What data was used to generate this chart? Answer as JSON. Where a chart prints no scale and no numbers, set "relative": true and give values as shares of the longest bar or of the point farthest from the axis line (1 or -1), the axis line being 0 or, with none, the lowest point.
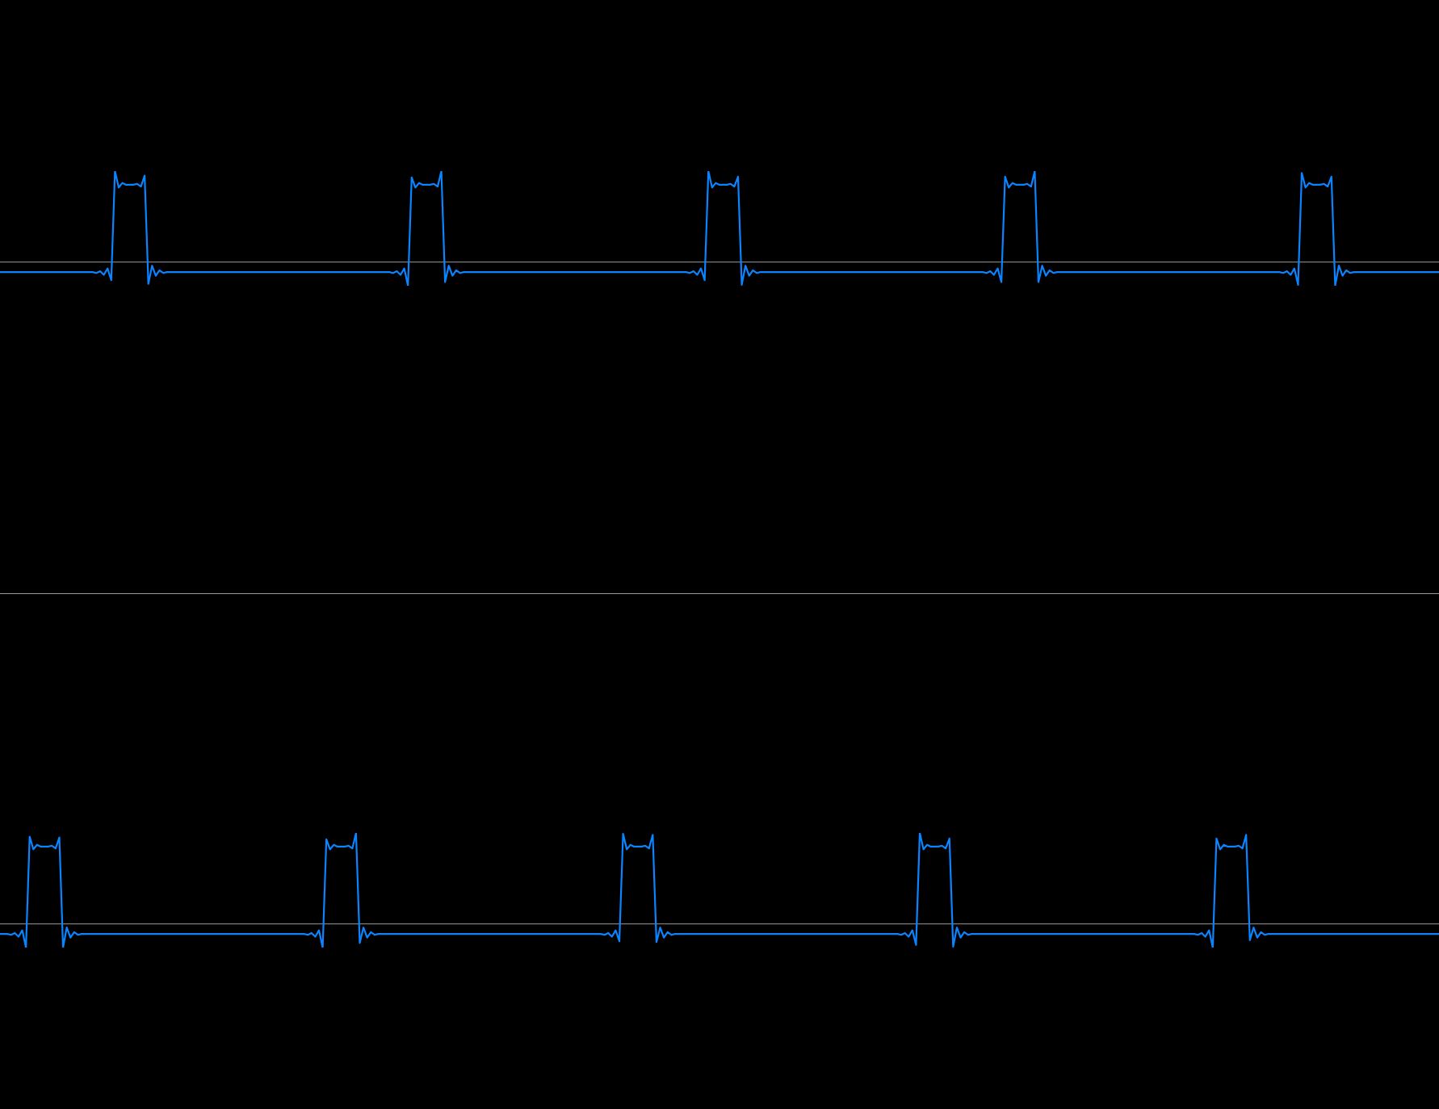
{
  "chart_data": [
    {
      "type": "line",
      "relative": true,
      "tick_labels": false,
      "ref_lines": [
        {
          "axis": "y",
          "value": 0,
          "color": "#9a9a9a"
        }
      ],
      "categories": [
        null,
        null,
        null,
        null,
        null,
        null,
        null,
        null,
        null,
        null,
        null,
        null,
        null,
        null,
        null,
        null,
        null,
        null,
        null,
        null,
        null,
        null,
        null,
        null,
        null,
        null,
        null,
        null,
        null,
        null,
        null,
        null,
        null,
        null,
        null,
        null,
        null,
        null,
        null,
        null,
        null,
        null,
        null,
        null,
        null,
        null,
        null,
        null,
        null,
        null,
        null,
        null,
        null,
        null,
        null,
        null,
        null,
        null,
        null,
        null,
        null,
        null,
        null,
        null,
        null,
        null,
        null,
        null,
        null,
        null,
        null,
        null,
        null,
        null,
        null,
        null,
        null,
        null,
        null,
        null,
        null,
        null,
        null,
        null,
        null,
        null,
        null,
        null,
        null,
        null,
        null,
        null,
        null,
        null,
        null,
        null,
        null,
        null,
        null,
        null,
        null,
        null,
        null,
        null,
        null,
        null,
        null,
        null,
        null,
        null,
        null,
        null,
        null,
        null,
        null,
        null,
        null,
        null,
        null,
        null,
        null,
        null,
        null,
        null,
        null,
        null,
        null,
        null,
        null,
        null,
        null,
        null,
        null,
        null,
        null,
        null,
        null,
        null,
        null,
        null,
        null,
        null,
        null,
        null,
        null,
        null,
        null,
        null,
        null,
        null,
        null,
        null,
        null,
        null,
        null,
        null,
        null,
        null,
        null,
        null,
        null,
        null,
        null,
        null,
        null,
        null,
        null,
        null,
        null,
        null,
        null,
        null,
        null,
        null,
        null,
        null,
        null,
        null,
        null,
        null,
        null,
        null,
        null,
        null,
        null,
        null,
        null,
        null,
        null,
        null,
        null,
        null,
        null,
        null,
        null,
        null,
        null,
        null,
        null,
        null,
        null,
        null,
        null,
        null,
        null,
        null,
        null,
        null,
        null,
        null,
        null,
        null,
        null,
        null,
        null,
        null,
        null,
        null,
        null,
        null,
        null,
        null,
        null,
        null,
        null,
        null,
        null,
        null,
        null,
        null,
        null,
        null,
        null,
        null,
        null,
        null,
        null,
        null,
        null,
        null,
        null,
        null,
        null,
        null,
        null,
        null,
        null,
        null,
        null,
        null,
        null,
        null,
        null,
        null,
        null,
        null,
        null,
        null,
        null,
        null,
        null,
        null,
        null,
        null,
        null,
        null,
        null,
        null,
        null,
        null,
        null,
        null,
        null,
        null,
        null,
        null,
        null,
        null,
        null,
        null,
        null,
        null,
        null,
        null,
        null,
        null,
        null,
        null,
        null,
        null,
        null,
        null,
        null,
        null,
        null,
        null,
        null,
        null,
        null,
        null,
        null,
        null,
        null,
        null,
        null,
        null,
        null,
        null,
        null,
        null,
        null,
        null,
        null,
        null,
        null,
        null,
        null,
        null,
        null,
        null,
        null,
        null,
        null,
        null,
        null,
        null,
        null,
        null,
        null,
        null,
        null,
        null,
        null,
        null,
        null,
        null,
        null,
        null,
        null,
        null,
        null,
        null,
        null,
        null,
        null,
        null,
        null,
        null,
        null,
        null,
        null,
        null,
        null,
        null,
        null,
        null,
        null,
        null,
        null,
        null,
        null,
        null,
        null,
        null,
        null,
        null,
        null,
        null,
        null,
        null,
        null,
        null,
        null,
        null,
        null,
        null,
        null,
        null,
        null,
        null,
        null,
        null,
        null,
        null,
        null,
        null,
        null,
        null,
        null
      ],
      "color": "#0a84ff",
      "values": [
        -0.11,
        -0.11,
        -0.11,
        -0.11,
        -0.11,
        -0.11,
        -0.11,
        -0.11,
        -0.11,
        -0.11,
        -0.11,
        -0.11,
        -0.11,
        -0.11,
        -0.11,
        -0.11,
        -0.11,
        -0.11,
        -0.11,
        -0.11,
        -0.11,
        -0.11,
        -0.11,
        -0.11,
        -0.11,
        -0.11,
        -0.12,
        -0.1,
        -0.14,
        -0.07,
        -0.2,
        1,
        0.82,
        0.87,
        0.85,
        0.85,
        0.85,
        0.86,
        0.83,
        0.95,
        -0.24,
        -0.04,
        -0.15,
        -0.09,
        -0.12,
        -0.11,
        -0.11,
        -0.11,
        -0.11,
        -0.11,
        -0.11,
        -0.11,
        -0.11,
        -0.11,
        -0.11,
        -0.11,
        -0.11,
        -0.11,
        -0.11,
        -0.11,
        -0.11,
        -0.11,
        -0.11,
        -0.11,
        -0.11,
        -0.11,
        -0.11,
        -0.11,
        -0.11,
        -0.11,
        -0.11,
        -0.11,
        -0.11,
        -0.11,
        -0.11,
        -0.11,
        -0.11,
        -0.11,
        -0.11,
        -0.11,
        -0.11,
        -0.11,
        -0.11,
        -0.11,
        -0.11,
        -0.11,
        -0.11,
        -0.11,
        -0.11,
        -0.11,
        -0.11,
        -0.11,
        -0.11,
        -0.11,
        -0.11,
        -0.11,
        -0.11,
        -0.11,
        -0.11,
        -0.11,
        -0.11,
        -0.11,
        -0.11,
        -0.11,
        -0.11,
        -0.11,
        -0.12,
        -0.1,
        -0.14,
        -0.07,
        -0.26,
        0.93,
        0.82,
        0.87,
        0.85,
        0.85,
        0.85,
        0.86,
        0.83,
        1,
        -0.22,
        -0.04,
        -0.15,
        -0.09,
        -0.12,
        -0.11,
        -0.11,
        -0.11,
        -0.11,
        -0.11,
        -0.11,
        -0.11,
        -0.11,
        -0.11,
        -0.11,
        -0.11,
        -0.11,
        -0.11,
        -0.11,
        -0.11,
        -0.11,
        -0.11,
        -0.11,
        -0.11,
        -0.11,
        -0.11,
        -0.11,
        -0.11,
        -0.11,
        -0.11,
        -0.11,
        -0.11,
        -0.11,
        -0.11,
        -0.11,
        -0.11,
        -0.11,
        -0.11,
        -0.11,
        -0.11,
        -0.11,
        -0.11,
        -0.11,
        -0.11,
        -0.11,
        -0.11,
        -0.11,
        -0.11,
        -0.11,
        -0.11,
        -0.11,
        -0.11,
        -0.11,
        -0.11,
        -0.11,
        -0.11,
        -0.11,
        -0.11,
        -0.11,
        -0.11,
        -0.11,
        -0.11,
        -0.11,
        -0.11,
        -0.11,
        -0.11,
        -0.12,
        -0.1,
        -0.14,
        -0.07,
        -0.2,
        1,
        0.82,
        0.87,
        0.85,
        0.85,
        0.85,
        0.86,
        0.83,
        0.94,
        -0.25,
        -0.04,
        -0.15,
        -0.09,
        -0.12,
        -0.11,
        -0.11,
        -0.11,
        -0.11,
        -0.11,
        -0.11,
        -0.11,
        -0.11,
        -0.11,
        -0.11,
        -0.11,
        -0.11,
        -0.11,
        -0.11,
        -0.11,
        -0.11,
        -0.11,
        -0.11,
        -0.11,
        -0.11,
        -0.11,
        -0.11,
        -0.11,
        -0.11,
        -0.11,
        -0.11,
        -0.11,
        -0.11,
        -0.11,
        -0.11,
        -0.11,
        -0.11,
        -0.11,
        -0.11,
        -0.11,
        -0.11,
        -0.11,
        -0.11,
        -0.11,
        -0.11,
        -0.11,
        -0.11,
        -0.11,
        -0.11,
        -0.11,
        -0.11,
        -0.11,
        -0.11,
        -0.11,
        -0.11,
        -0.11,
        -0.11,
        -0.11,
        -0.11,
        -0.11,
        -0.11,
        -0.11,
        -0.11,
        -0.11,
        -0.11,
        -0.11,
        -0.12,
        -0.1,
        -0.14,
        -0.07,
        -0.22,
        0.94,
        0.82,
        0.87,
        0.85,
        0.85,
        0.85,
        0.86,
        0.83,
        1,
        -0.22,
        -0.04,
        -0.15,
        -0.09,
        -0.12,
        -0.11,
        -0.11,
        -0.11,
        -0.11,
        -0.11,
        -0.11,
        -0.11,
        -0.11,
        -0.11,
        -0.11,
        -0.11,
        -0.11,
        -0.11,
        -0.11,
        -0.11,
        -0.11,
        -0.11,
        -0.11,
        -0.11,
        -0.11,
        -0.11,
        -0.11,
        -0.11,
        -0.11,
        -0.11,
        -0.11,
        -0.11,
        -0.11,
        -0.11,
        -0.11,
        -0.11,
        -0.11,
        -0.11,
        -0.11,
        -0.11,
        -0.11,
        -0.11,
        -0.11,
        -0.11,
        -0.11,
        -0.11,
        -0.11,
        -0.11,
        -0.11,
        -0.11,
        -0.11,
        -0.11,
        -0.11,
        -0.11,
        -0.11,
        -0.11,
        -0.11,
        -0.11,
        -0.11,
        -0.11,
        -0.11,
        -0.11,
        -0.11,
        -0.11,
        -0.11,
        -0.11,
        -0.12,
        -0.1,
        -0.14,
        -0.07,
        -0.25,
        0.98,
        0.82,
        0.87,
        0.85,
        0.85,
        0.85,
        0.86,
        0.83,
        0.94,
        -0.26,
        -0.04,
        -0.15,
        -0.09,
        -0.12,
        -0.11,
        -0.11,
        -0.11,
        -0.11,
        -0.11,
        -0.11,
        -0.11,
        -0.11,
        -0.11,
        -0.11,
        -0.11,
        -0.11,
        -0.11,
        -0.11,
        -0.11,
        -0.11,
        -0.11,
        -0.11,
        -0.11,
        -0.11,
        -0.11,
        -0.11,
        -0.11,
        -0.11
      ]
    },
    {
      "type": "line",
      "relative": true,
      "tick_labels": false,
      "ref_lines": [
        {
          "axis": "y",
          "value": 0,
          "color": "#9a9a9a"
        }
      ],
      "categories": [
        null,
        null,
        null,
        null,
        null,
        null,
        null,
        null,
        null,
        null,
        null,
        null,
        null,
        null,
        null,
        null,
        null,
        null,
        null,
        null,
        null,
        null,
        null,
        null,
        null,
        null,
        null,
        null,
        null,
        null,
        null,
        null,
        null,
        null,
        null,
        null,
        null,
        null,
        null,
        null,
        null,
        null,
        null,
        null,
        null,
        null,
        null,
        null,
        null,
        null,
        null,
        null,
        null,
        null,
        null,
        null,
        null,
        null,
        null,
        null,
        null,
        null,
        null,
        null,
        null,
        null,
        null,
        null,
        null,
        null,
        null,
        null,
        null,
        null,
        null,
        null,
        null,
        null,
        null,
        null,
        null,
        null,
        null,
        null,
        null,
        null,
        null,
        null,
        null,
        null,
        null,
        null,
        null,
        null,
        null,
        null,
        null,
        null,
        null,
        null,
        null,
        null,
        null,
        null,
        null,
        null,
        null,
        null,
        null,
        null,
        null,
        null,
        null,
        null,
        null,
        null,
        null,
        null,
        null,
        null,
        null,
        null,
        null,
        null,
        null,
        null,
        null,
        null,
        null,
        null,
        null,
        null,
        null,
        null,
        null,
        null,
        null,
        null,
        null,
        null,
        null,
        null,
        null,
        null,
        null,
        null,
        null,
        null,
        null,
        null,
        null,
        null,
        null,
        null,
        null,
        null,
        null,
        null,
        null,
        null,
        null,
        null,
        null,
        null,
        null,
        null,
        null,
        null,
        null,
        null,
        null,
        null,
        null,
        null,
        null,
        null,
        null,
        null,
        null,
        null,
        null,
        null,
        null,
        null,
        null,
        null,
        null,
        null,
        null,
        null,
        null,
        null,
        null,
        null,
        null,
        null,
        null,
        null,
        null,
        null,
        null,
        null,
        null,
        null,
        null,
        null,
        null,
        null,
        null,
        null,
        null,
        null,
        null,
        null,
        null,
        null,
        null,
        null,
        null,
        null,
        null,
        null,
        null,
        null,
        null,
        null,
        null,
        null,
        null,
        null,
        null,
        null,
        null,
        null,
        null,
        null,
        null,
        null,
        null,
        null,
        null,
        null,
        null,
        null,
        null,
        null,
        null,
        null,
        null,
        null,
        null,
        null,
        null,
        null,
        null,
        null,
        null,
        null,
        null,
        null,
        null,
        null,
        null,
        null,
        null,
        null,
        null,
        null,
        null,
        null,
        null,
        null,
        null,
        null,
        null,
        null,
        null,
        null,
        null,
        null,
        null,
        null,
        null,
        null,
        null,
        null,
        null,
        null,
        null,
        null,
        null,
        null,
        null,
        null,
        null,
        null,
        null,
        null,
        null,
        null,
        null,
        null,
        null,
        null,
        null,
        null,
        null,
        null,
        null,
        null,
        null,
        null,
        null,
        null,
        null,
        null,
        null,
        null,
        null,
        null,
        null,
        null,
        null,
        null,
        null,
        null,
        null,
        null,
        null,
        null,
        null,
        null,
        null,
        null,
        null,
        null,
        null,
        null,
        null,
        null,
        null,
        null,
        null,
        null,
        null,
        null,
        null,
        null,
        null,
        null,
        null,
        null,
        null,
        null,
        null,
        null,
        null,
        null,
        null,
        null,
        null,
        null,
        null,
        null,
        null,
        null,
        null,
        null,
        null,
        null,
        null,
        null,
        null,
        null,
        null,
        null,
        null,
        null,
        null,
        null,
        null,
        null,
        null,
        null,
        null,
        null,
        null,
        null,
        null
      ],
      "color": "#0a84ff",
      "values": [
        -0.11,
        -0.11,
        -0.11,
        -0.12,
        -0.1,
        -0.14,
        -0.07,
        -0.26,
        0.96,
        0.82,
        0.87,
        0.85,
        0.85,
        0.85,
        0.86,
        0.83,
        0.95,
        -0.26,
        -0.04,
        -0.15,
        -0.09,
        -0.12,
        -0.11,
        -0.11,
        -0.11,
        -0.11,
        -0.11,
        -0.11,
        -0.11,
        -0.11,
        -0.11,
        -0.11,
        -0.11,
        -0.11,
        -0.11,
        -0.11,
        -0.11,
        -0.11,
        -0.11,
        -0.11,
        -0.11,
        -0.11,
        -0.11,
        -0.11,
        -0.11,
        -0.11,
        -0.11,
        -0.11,
        -0.11,
        -0.11,
        -0.11,
        -0.11,
        -0.11,
        -0.11,
        -0.11,
        -0.11,
        -0.11,
        -0.11,
        -0.11,
        -0.11,
        -0.11,
        -0.11,
        -0.11,
        -0.11,
        -0.11,
        -0.11,
        -0.11,
        -0.11,
        -0.11,
        -0.11,
        -0.11,
        -0.11,
        -0.11,
        -0.11,
        -0.11,
        -0.11,
        -0.11,
        -0.11,
        -0.11,
        -0.11,
        -0.11,
        -0.11,
        -0.11,
        -0.12,
        -0.1,
        -0.14,
        -0.07,
        -0.26,
        0.93,
        0.82,
        0.87,
        0.85,
        0.85,
        0.85,
        0.86,
        0.83,
        1,
        -0.21,
        -0.04,
        -0.15,
        -0.09,
        -0.12,
        -0.11,
        -0.11,
        -0.11,
        -0.11,
        -0.11,
        -0.11,
        -0.11,
        -0.11,
        -0.11,
        -0.11,
        -0.11,
        -0.11,
        -0.11,
        -0.11,
        -0.11,
        -0.11,
        -0.11,
        -0.11,
        -0.11,
        -0.11,
        -0.11,
        -0.11,
        -0.11,
        -0.11,
        -0.11,
        -0.11,
        -0.11,
        -0.11,
        -0.11,
        -0.11,
        -0.11,
        -0.11,
        -0.11,
        -0.11,
        -0.11,
        -0.11,
        -0.11,
        -0.11,
        -0.11,
        -0.11,
        -0.11,
        -0.11,
        -0.11,
        -0.11,
        -0.11,
        -0.11,
        -0.11,
        -0.11,
        -0.11,
        -0.11,
        -0.11,
        -0.11,
        -0.11,
        -0.11,
        -0.11,
        -0.11,
        -0.11,
        -0.11,
        -0.11,
        -0.11,
        -0.11,
        -0.12,
        -0.1,
        -0.14,
        -0.07,
        -0.19,
        0.99,
        0.82,
        0.87,
        0.85,
        0.85,
        0.85,
        0.86,
        0.83,
        0.98,
        -0.2,
        -0.04,
        -0.15,
        -0.09,
        -0.12,
        -0.11,
        -0.11,
        -0.11,
        -0.11,
        -0.11,
        -0.11,
        -0.11,
        -0.11,
        -0.11,
        -0.11,
        -0.11,
        -0.11,
        -0.11,
        -0.11,
        -0.11,
        -0.11,
        -0.11,
        -0.11,
        -0.11,
        -0.11,
        -0.11,
        -0.11,
        -0.11,
        -0.11,
        -0.11,
        -0.11,
        -0.11,
        -0.11,
        -0.11,
        -0.11,
        -0.11,
        -0.11,
        -0.11,
        -0.11,
        -0.11,
        -0.11,
        -0.11,
        -0.11,
        -0.11,
        -0.11,
        -0.11,
        -0.11,
        -0.11,
        -0.11,
        -0.11,
        -0.11,
        -0.11,
        -0.11,
        -0.11,
        -0.11,
        -0.11,
        -0.11,
        -0.11,
        -0.11,
        -0.11,
        -0.11,
        -0.11,
        -0.11,
        -0.11,
        -0.11,
        -0.11,
        -0.12,
        -0.1,
        -0.14,
        -0.07,
        -0.23,
        1,
        0.82,
        0.87,
        0.85,
        0.85,
        0.85,
        0.86,
        0.83,
        0.94,
        -0.25,
        -0.04,
        -0.15,
        -0.09,
        -0.12,
        -0.11,
        -0.11,
        -0.11,
        -0.11,
        -0.11,
        -0.11,
        -0.11,
        -0.11,
        -0.11,
        -0.11,
        -0.11,
        -0.11,
        -0.11,
        -0.11,
        -0.11,
        -0.11,
        -0.11,
        -0.11,
        -0.11,
        -0.11,
        -0.11,
        -0.11,
        -0.11,
        -0.11,
        -0.11,
        -0.11,
        -0.11,
        -0.11,
        -0.11,
        -0.11,
        -0.11,
        -0.11,
        -0.11,
        -0.11,
        -0.11,
        -0.11,
        -0.11,
        -0.11,
        -0.11,
        -0.11,
        -0.11,
        -0.11,
        -0.11,
        -0.11,
        -0.11,
        -0.11,
        -0.11,
        -0.11,
        -0.11,
        -0.11,
        -0.11,
        -0.11,
        -0.11,
        -0.11,
        -0.11,
        -0.11,
        -0.11,
        -0.11,
        -0.11,
        -0.11,
        -0.11,
        -0.12,
        -0.1,
        -0.14,
        -0.07,
        -0.26,
        0.94,
        0.82,
        0.87,
        0.85,
        0.85,
        0.85,
        0.86,
        0.83,
        0.98,
        -0.18,
        -0.04,
        -0.15,
        -0.09,
        -0.12,
        -0.11,
        -0.11,
        -0.11,
        -0.11,
        -0.11,
        -0.11,
        -0.11,
        -0.11,
        -0.11,
        -0.11,
        -0.11,
        -0.11,
        -0.11,
        -0.11,
        -0.11,
        -0.11,
        -0.11,
        -0.11,
        -0.11,
        -0.11,
        -0.11,
        -0.11,
        -0.11,
        -0.11,
        -0.11,
        -0.11,
        -0.11,
        -0.11,
        -0.11,
        -0.11,
        -0.11,
        -0.11,
        -0.11,
        -0.11,
        -0.11,
        -0.11,
        -0.11,
        -0.11,
        -0.11,
        -0.11,
        -0.11,
        -0.11,
        -0.11,
        -0.11,
        -0.11,
        -0.11,
        -0.11
      ]
    }
  ]
}
